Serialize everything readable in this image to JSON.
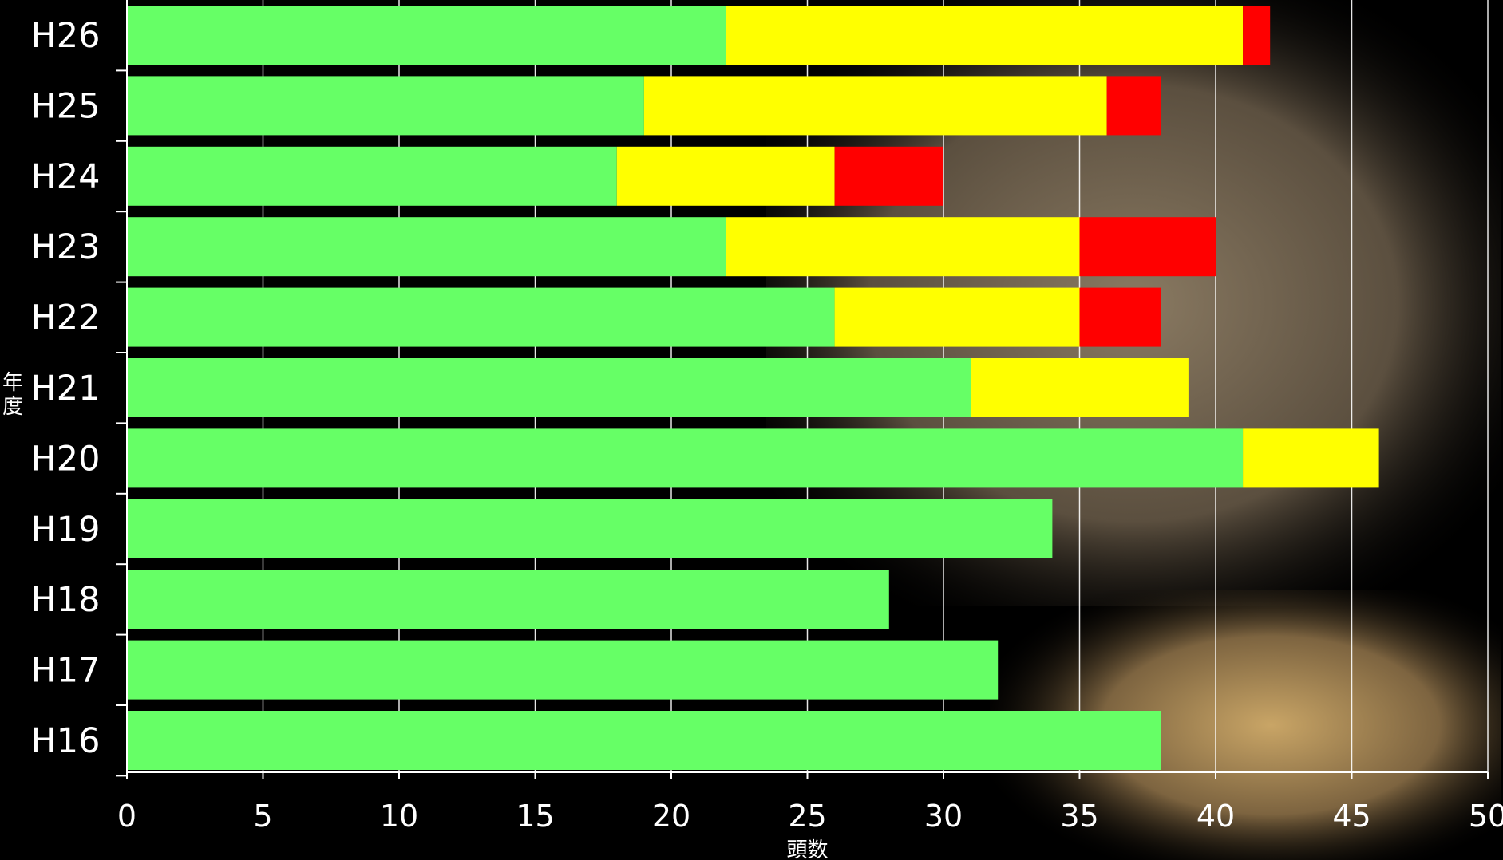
{
  "chart_data": {
    "type": "bar",
    "orientation": "horizontal",
    "stacked": true,
    "categories": [
      "H26",
      "H25",
      "H24",
      "H23",
      "H22",
      "H21",
      "H20",
      "H19",
      "H18",
      "H17",
      "H16"
    ],
    "series": [
      {
        "values": [
          22,
          19,
          18,
          22,
          26,
          31,
          41,
          34,
          28,
          32,
          38
        ],
        "color": "#66ff66"
      },
      {
        "values": [
          19,
          17,
          8,
          13,
          9,
          8,
          5,
          0,
          0,
          0,
          0
        ],
        "color": "#ffff00"
      },
      {
        "values": [
          1,
          2,
          4,
          5,
          3,
          0,
          0,
          0,
          0,
          0,
          0
        ],
        "color": "#ff0000"
      }
    ],
    "xlim": [
      0,
      50
    ],
    "xticks": [
      0,
      5,
      10,
      15,
      20,
      25,
      30,
      35,
      40,
      45,
      50
    ],
    "xlabel": "頭数",
    "ylabel": "年度",
    "grid": true,
    "background_color": "#000000",
    "text_color": "#ffffff"
  }
}
